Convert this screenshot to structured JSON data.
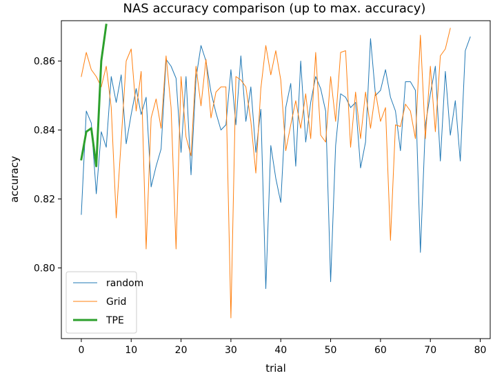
{
  "chart_data": {
    "type": "line",
    "title": "NAS accuracy comparison (up to max. accuracy)",
    "xlabel": "trial",
    "ylabel": "accuracy",
    "xlim": [
      -4,
      82
    ],
    "ylim": [
      0.7795,
      0.8717
    ],
    "xticks": [
      0,
      10,
      20,
      30,
      40,
      50,
      60,
      70,
      80
    ],
    "yticks": [
      0.8,
      0.82,
      0.84,
      0.86
    ],
    "grid": false,
    "legend_position": "lower-left",
    "series": [
      {
        "name": "random",
        "color": "#1f77b4",
        "values": [
          0.8155,
          0.8455,
          0.842,
          0.8215,
          0.8395,
          0.835,
          0.8555,
          0.848,
          0.856,
          0.836,
          0.8445,
          0.852,
          0.8445,
          0.8495,
          0.8235,
          0.8295,
          0.8345,
          0.8605,
          0.8585,
          0.855,
          0.8335,
          0.8555,
          0.827,
          0.855,
          0.8645,
          0.86,
          0.851,
          0.845,
          0.84,
          0.8415,
          0.8575,
          0.8415,
          0.8615,
          0.8425,
          0.8525,
          0.8335,
          0.846,
          0.794,
          0.8355,
          0.826,
          0.819,
          0.8465,
          0.8535,
          0.8295,
          0.86,
          0.8365,
          0.848,
          0.8555,
          0.852,
          0.8455,
          0.796,
          0.8355,
          0.8505,
          0.8495,
          0.8465,
          0.848,
          0.829,
          0.8365,
          0.8665,
          0.85,
          0.8515,
          0.8575,
          0.8495,
          0.8455,
          0.834,
          0.854,
          0.854,
          0.8515,
          0.8045,
          0.8415,
          0.8505,
          0.8585,
          0.831,
          0.857,
          0.8385,
          0.8485,
          0.831,
          0.863,
          0.867
        ]
      },
      {
        "name": "Grid",
        "color": "#ff7f0e",
        "values": [
          0.8555,
          0.8625,
          0.8575,
          0.8555,
          0.8525,
          0.8585,
          0.8465,
          0.8145,
          0.837,
          0.86,
          0.8635,
          0.8455,
          0.857,
          0.8055,
          0.8435,
          0.849,
          0.8405,
          0.8615,
          0.8465,
          0.8055,
          0.8555,
          0.838,
          0.8325,
          0.8585,
          0.847,
          0.8605,
          0.8435,
          0.851,
          0.8525,
          0.8525,
          0.7855,
          0.8555,
          0.8545,
          0.8525,
          0.8425,
          0.8275,
          0.852,
          0.8645,
          0.856,
          0.863,
          0.8545,
          0.834,
          0.8415,
          0.8485,
          0.8405,
          0.8505,
          0.8375,
          0.8625,
          0.8385,
          0.8365,
          0.8555,
          0.8425,
          0.8625,
          0.863,
          0.835,
          0.851,
          0.8375,
          0.851,
          0.8405,
          0.851,
          0.8425,
          0.8465,
          0.808,
          0.8415,
          0.841,
          0.8475,
          0.8455,
          0.8375,
          0.8675,
          0.8375,
          0.8585,
          0.8395,
          0.8615,
          0.8635,
          0.8695
        ]
      },
      {
        "name": "TPE",
        "color": "#2ca02c",
        "values": [
          0.8315,
          0.8395,
          0.8405,
          0.8295,
          0.86,
          0.8705
        ]
      }
    ]
  }
}
